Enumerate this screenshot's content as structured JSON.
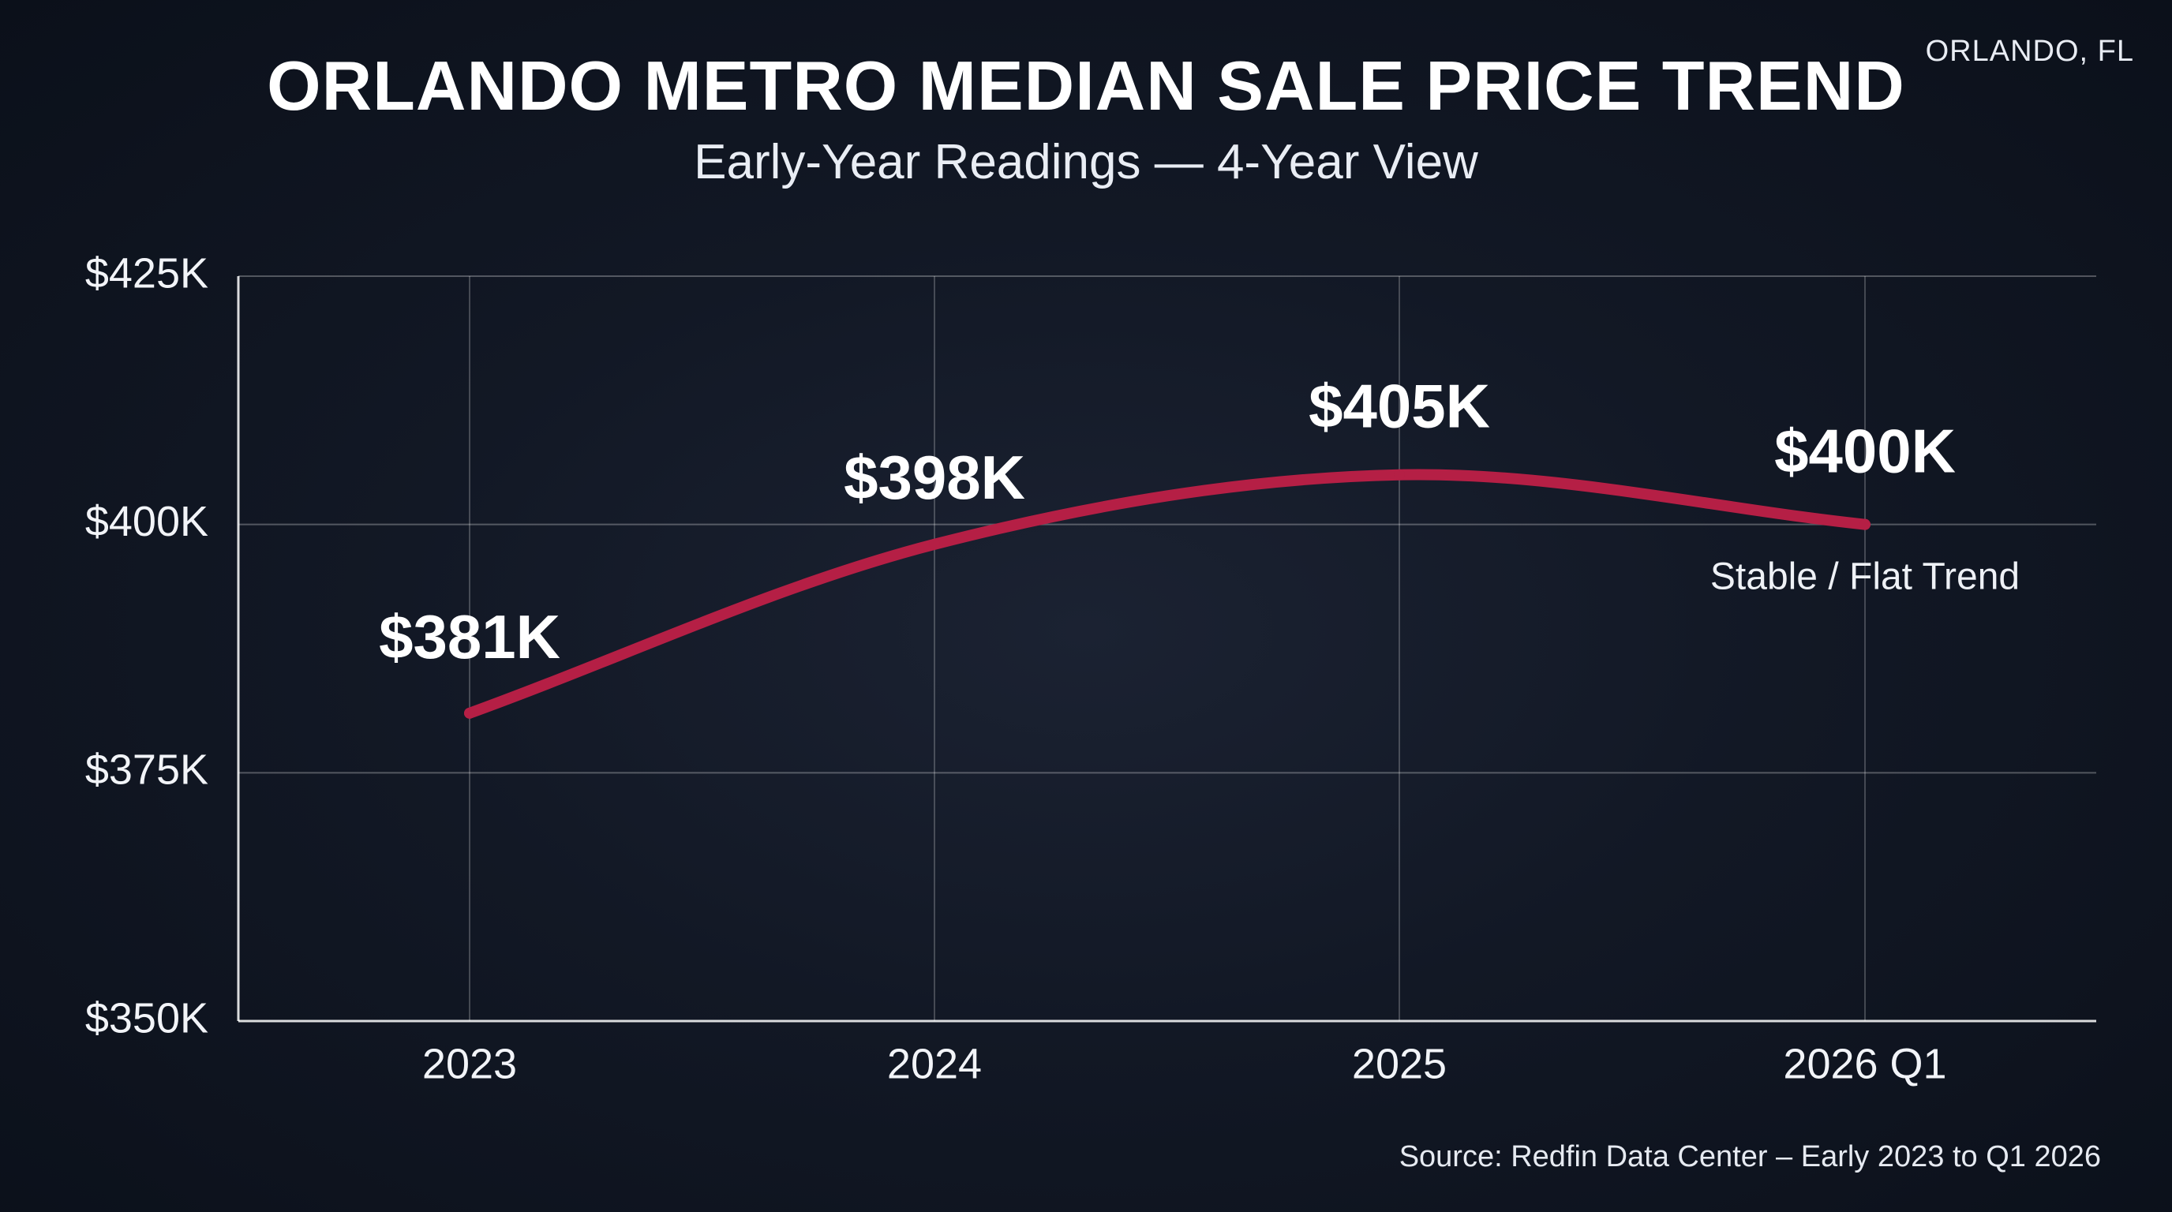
{
  "location": "ORLANDO, FL",
  "chart_data": {
    "type": "line",
    "title": "ORLANDO METRO MEDIAN SALE PRICE TREND",
    "subtitle": "Early-Year Readings — 4-Year View",
    "categories": [
      "2023",
      "2024",
      "2025",
      "2026 Q1"
    ],
    "values": [
      381,
      398,
      405,
      400
    ],
    "data_labels": [
      "$381K",
      "$398K",
      "$405K",
      "$400K"
    ],
    "ylim": [
      350,
      425
    ],
    "y_ticks": [
      350,
      375,
      400,
      425
    ],
    "y_tick_labels": [
      "$350K",
      "$375K",
      "$400K",
      "$425K"
    ],
    "grid": true,
    "line_color": "#b51f45",
    "annotation": {
      "text": "Stable / Flat Trend",
      "category": "2026 Q1"
    },
    "source": "Source: Redfin Data Center – Early 2023 to Q1 2026"
  }
}
